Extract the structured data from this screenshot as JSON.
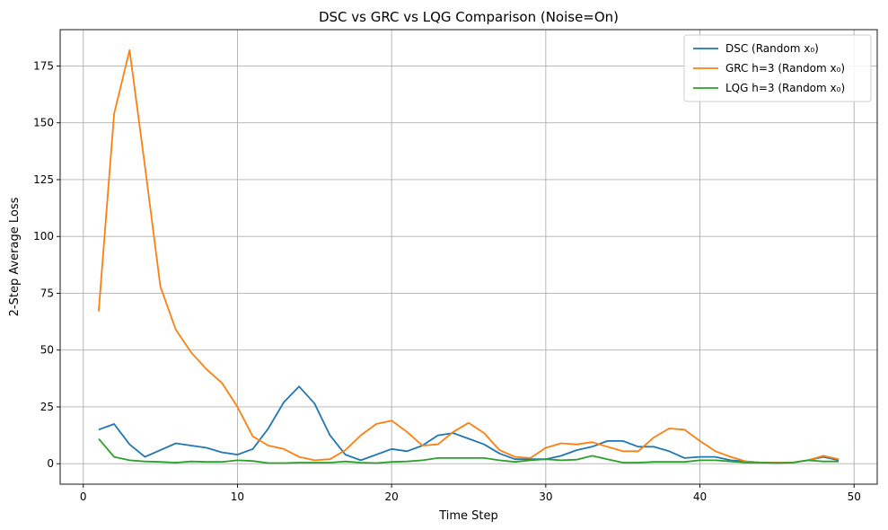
{
  "chart_data": {
    "type": "line",
    "title": "DSC vs GRC vs LQG Comparison (Noise=On)",
    "xlabel": "Time Step",
    "ylabel": "2-Step Average Loss",
    "xlim": [
      -1.5,
      51.5
    ],
    "ylim": [
      -9,
      191
    ],
    "xticks": [
      0,
      10,
      20,
      30,
      40,
      50
    ],
    "yticks": [
      0,
      25,
      50,
      75,
      100,
      125,
      150,
      175
    ],
    "grid": true,
    "legend_position": "top-right",
    "x": [
      1,
      2,
      3,
      4,
      5,
      6,
      7,
      8,
      9,
      10,
      11,
      12,
      13,
      14,
      15,
      16,
      17,
      18,
      19,
      20,
      21,
      22,
      23,
      24,
      25,
      26,
      27,
      28,
      29,
      30,
      31,
      32,
      33,
      34,
      35,
      36,
      37,
      38,
      39,
      40,
      41,
      42,
      43,
      44,
      45,
      46,
      47,
      48,
      49
    ],
    "series": [
      {
        "name": "DSC (Random x₀)",
        "color": "#1f77b4",
        "values": [
          15,
          17.5,
          8.5,
          3,
          6,
          9,
          8,
          7,
          5,
          4,
          6.5,
          15.5,
          27,
          34,
          26.5,
          12.5,
          4,
          1.5,
          4,
          6.5,
          5.5,
          8,
          12.5,
          13.5,
          11,
          8.5,
          4.5,
          2,
          2,
          2,
          3.5,
          6,
          7.5,
          10,
          10,
          7.5,
          7.5,
          5.5,
          2.5,
          3,
          3,
          1.5,
          1,
          0.5,
          0.5,
          0.5,
          1.5,
          3,
          1.5
        ]
      },
      {
        "name": "GRC h=3 (Random x₀)",
        "color": "#ff7f0e",
        "values": [
          67,
          154,
          182,
          131,
          78,
          59,
          49,
          41.5,
          35.5,
          25,
          12,
          8,
          6.5,
          3,
          1.5,
          2,
          6,
          12.5,
          17.5,
          19,
          14,
          8,
          8.5,
          14,
          18,
          13.5,
          6,
          3,
          2.5,
          7,
          9,
          8.5,
          9.5,
          7.5,
          5.5,
          5.5,
          11.5,
          15.5,
          15,
          10,
          5.5,
          3,
          1,
          0.5,
          0.5,
          0.5,
          1.5,
          3.5,
          2
        ]
      },
      {
        "name": "LQG h=3 (Random x₀)",
        "color": "#2ca02c",
        "values": [
          11,
          3,
          1.5,
          1,
          0.8,
          0.5,
          1,
          0.8,
          0.8,
          1.5,
          1.2,
          0.3,
          0.3,
          0.5,
          0.5,
          0.5,
          1,
          0.5,
          0.3,
          0.8,
          1,
          1.5,
          2.5,
          2.5,
          2.5,
          2.5,
          1.5,
          0.8,
          1.5,
          2,
          1.5,
          1.8,
          3.5,
          2,
          0.5,
          0.5,
          0.8,
          0.8,
          0.8,
          1.5,
          1.5,
          1,
          0.5,
          0.5,
          0.3,
          0.5,
          1.5,
          1,
          1
        ]
      }
    ]
  }
}
